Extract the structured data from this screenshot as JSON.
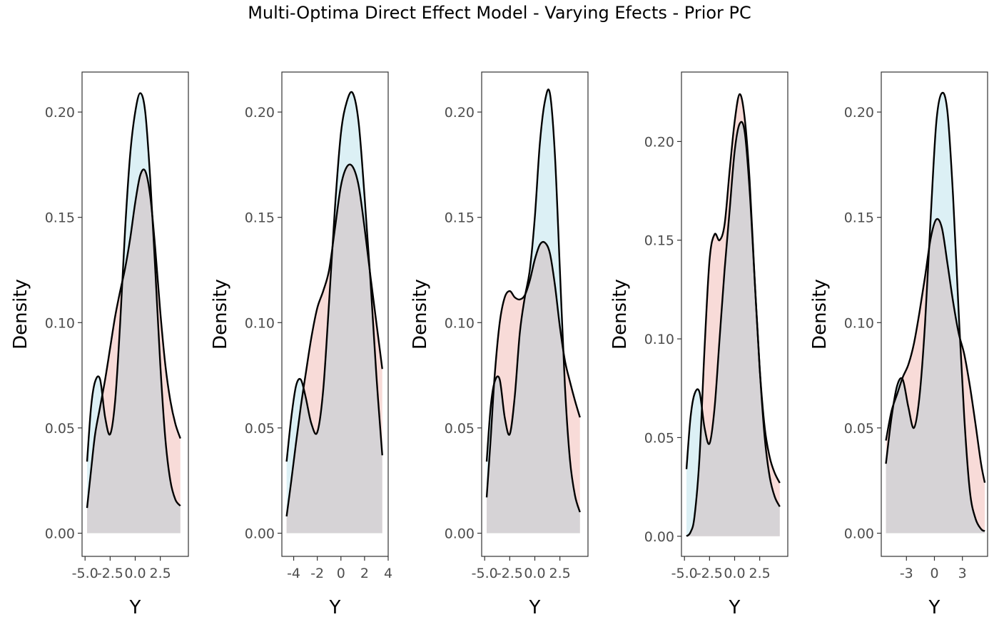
{
  "title": "Multi-Optima Direct Effect Model - Varying Efects - Prior PC",
  "colors": {
    "blue_fill": "#dcf0f5",
    "red_fill": "#f8dbd8",
    "overlap_fill": "#d6d3d6",
    "line": "#000000",
    "frame": "#333333"
  },
  "chart_data": [
    {
      "type": "area",
      "xlabel": "Y",
      "ylabel": "Density",
      "xlim": [
        -5.3,
        5.3
      ],
      "ylim": [
        -0.011,
        0.219
      ],
      "xticks": [
        -5.0,
        -2.5,
        0.0,
        2.5
      ],
      "xtick_labels": [
        "-5.0",
        "-2.5",
        "0.0",
        "2.5"
      ],
      "yticks": [
        0,
        0.05,
        0.1,
        0.15,
        0.2
      ],
      "ytick_labels": [
        "0.00",
        "0.05",
        "0.10",
        "0.15",
        "0.20"
      ],
      "series": [
        {
          "fill": "blue",
          "x": [
            -4.8,
            -4.4,
            -4.0,
            -3.5,
            -3.0,
            -2.5,
            -2.0,
            -1.5,
            -1.0,
            -0.5,
            0.0,
            0.5,
            1.0,
            1.5,
            2.0,
            2.5,
            3.0,
            3.5,
            4.0,
            4.5
          ],
          "y": [
            0.034,
            0.06,
            0.072,
            0.073,
            0.055,
            0.047,
            0.063,
            0.1,
            0.145,
            0.18,
            0.2,
            0.209,
            0.2,
            0.168,
            0.125,
            0.08,
            0.045,
            0.025,
            0.016,
            0.013
          ]
        },
        {
          "fill": "red",
          "x": [
            -4.8,
            -4.4,
            -4.0,
            -3.5,
            -3.0,
            -2.5,
            -2.0,
            -1.5,
            -1.0,
            -0.5,
            0.0,
            0.5,
            1.0,
            1.5,
            2.0,
            2.5,
            3.0,
            3.5,
            4.0,
            4.5
          ],
          "y": [
            0.012,
            0.03,
            0.047,
            0.06,
            0.073,
            0.088,
            0.103,
            0.115,
            0.126,
            0.14,
            0.157,
            0.17,
            0.172,
            0.16,
            0.135,
            0.105,
            0.08,
            0.063,
            0.052,
            0.045
          ]
        }
      ]
    },
    {
      "type": "area",
      "xlabel": "Y",
      "ylabel": "Density",
      "xlim": [
        -5.0,
        4.0
      ],
      "ylim": [
        -0.011,
        0.219
      ],
      "xticks": [
        -4,
        -2,
        0,
        2,
        4
      ],
      "xtick_labels": [
        "-4",
        "-2",
        "0",
        "2",
        "4"
      ],
      "yticks": [
        0,
        0.05,
        0.1,
        0.15,
        0.2
      ],
      "ytick_labels": [
        "0.00",
        "0.05",
        "0.10",
        "0.15",
        "0.20"
      ],
      "series": [
        {
          "fill": "blue",
          "x": [
            -4.6,
            -4.2,
            -3.8,
            -3.4,
            -3.0,
            -2.5,
            -2.0,
            -1.5,
            -1.0,
            -0.5,
            0.0,
            0.5,
            1.0,
            1.5,
            2.0,
            2.5,
            3.0,
            3.5
          ],
          "y": [
            0.034,
            0.055,
            0.07,
            0.073,
            0.065,
            0.052,
            0.048,
            0.068,
            0.11,
            0.155,
            0.19,
            0.205,
            0.209,
            0.195,
            0.16,
            0.12,
            0.075,
            0.037
          ]
        },
        {
          "fill": "red",
          "x": [
            -4.6,
            -4.2,
            -3.8,
            -3.4,
            -3.0,
            -2.5,
            -2.0,
            -1.5,
            -1.0,
            -0.5,
            0.0,
            0.5,
            1.0,
            1.5,
            2.0,
            2.5,
            3.0,
            3.5
          ],
          "y": [
            0.008,
            0.025,
            0.043,
            0.06,
            0.075,
            0.093,
            0.107,
            0.115,
            0.125,
            0.145,
            0.165,
            0.174,
            0.174,
            0.165,
            0.145,
            0.122,
            0.1,
            0.078
          ]
        }
      ]
    },
    {
      "type": "area",
      "xlabel": "Y",
      "ylabel": "Density",
      "xlim": [
        -5.3,
        5.3
      ],
      "ylim": [
        -0.011,
        0.219
      ],
      "xticks": [
        -5.0,
        -2.5,
        0.0,
        2.5
      ],
      "xtick_labels": [
        "-5.0",
        "-2.5",
        "0.0",
        "2.5"
      ],
      "yticks": [
        0,
        0.05,
        0.1,
        0.15,
        0.2
      ],
      "ytick_labels": [
        "0.00",
        "0.05",
        "0.10",
        "0.15",
        "0.20"
      ],
      "series": [
        {
          "fill": "blue",
          "x": [
            -4.8,
            -4.4,
            -4.0,
            -3.5,
            -3.0,
            -2.5,
            -2.0,
            -1.5,
            -1.0,
            -0.5,
            0.0,
            0.5,
            1.0,
            1.5,
            2.0,
            2.5,
            3.0,
            3.5,
            4.0,
            4.5
          ],
          "y": [
            0.034,
            0.06,
            0.072,
            0.073,
            0.055,
            0.047,
            0.065,
            0.095,
            0.112,
            0.125,
            0.15,
            0.185,
            0.205,
            0.209,
            0.18,
            0.125,
            0.07,
            0.035,
            0.018,
            0.01
          ]
        },
        {
          "fill": "red",
          "x": [
            -4.8,
            -4.4,
            -4.0,
            -3.5,
            -3.0,
            -2.5,
            -2.0,
            -1.5,
            -1.0,
            -0.5,
            0.0,
            0.5,
            1.0,
            1.5,
            2.0,
            2.5,
            3.0,
            3.5,
            4.0,
            4.5
          ],
          "y": [
            0.017,
            0.045,
            0.075,
            0.1,
            0.112,
            0.115,
            0.112,
            0.111,
            0.113,
            0.12,
            0.13,
            0.137,
            0.138,
            0.133,
            0.118,
            0.098,
            0.082,
            0.072,
            0.063,
            0.055
          ]
        }
      ]
    },
    {
      "type": "area",
      "xlabel": "Y",
      "ylabel": "Density",
      "xlim": [
        -5.3,
        5.3
      ],
      "ylim": [
        -0.0102,
        0.2352
      ],
      "xticks": [
        -5.0,
        -2.5,
        0.0,
        2.5
      ],
      "xtick_labels": [
        "-5.0",
        "-2.5",
        "0.0",
        "2.5"
      ],
      "yticks": [
        0,
        0.05,
        0.1,
        0.15,
        0.2
      ],
      "ytick_labels": [
        "0.00",
        "0.05",
        "0.10",
        "0.15",
        "0.20"
      ],
      "series": [
        {
          "fill": "blue",
          "x": [
            -4.8,
            -4.4,
            -4.0,
            -3.5,
            -3.0,
            -2.5,
            -2.0,
            -1.5,
            -1.0,
            -0.5,
            0.0,
            0.5,
            1.0,
            1.5,
            2.0,
            2.5,
            3.0,
            3.5,
            4.0,
            4.5
          ],
          "y": [
            0.034,
            0.06,
            0.072,
            0.073,
            0.055,
            0.047,
            0.065,
            0.1,
            0.135,
            0.165,
            0.195,
            0.209,
            0.205,
            0.175,
            0.13,
            0.085,
            0.05,
            0.03,
            0.02,
            0.015
          ]
        },
        {
          "fill": "red",
          "x": [
            -4.8,
            -4.4,
            -4.0,
            -3.5,
            -3.0,
            -2.5,
            -2.0,
            -1.5,
            -1.0,
            -0.5,
            0.0,
            0.5,
            1.0,
            1.5,
            2.0,
            2.5,
            3.0,
            3.5,
            4.0,
            4.5
          ],
          "y": [
            0.0,
            0.002,
            0.01,
            0.04,
            0.095,
            0.14,
            0.153,
            0.15,
            0.158,
            0.185,
            0.21,
            0.224,
            0.212,
            0.18,
            0.13,
            0.085,
            0.055,
            0.04,
            0.032,
            0.027
          ]
        }
      ]
    },
    {
      "type": "area",
      "xlabel": "Y",
      "ylabel": "Density",
      "xlim": [
        -5.7,
        5.7
      ],
      "ylim": [
        -0.011,
        0.219
      ],
      "xticks": [
        -3,
        0,
        3
      ],
      "xtick_labels": [
        "-3",
        "0",
        "3"
      ],
      "yticks": [
        0,
        0.05,
        0.1,
        0.15,
        0.2
      ],
      "ytick_labels": [
        "0.00",
        "0.05",
        "0.10",
        "0.15",
        "0.20"
      ],
      "series": [
        {
          "fill": "blue",
          "x": [
            -5.2,
            -4.6,
            -4.0,
            -3.4,
            -2.8,
            -2.2,
            -1.6,
            -1.0,
            -0.4,
            0.2,
            0.8,
            1.4,
            2.0,
            2.6,
            3.2,
            3.8,
            4.4,
            5.0,
            5.4
          ],
          "y": [
            0.033,
            0.055,
            0.07,
            0.073,
            0.06,
            0.05,
            0.065,
            0.1,
            0.15,
            0.195,
            0.209,
            0.2,
            0.16,
            0.105,
            0.055,
            0.02,
            0.007,
            0.002,
            0.001
          ]
        },
        {
          "fill": "red",
          "x": [
            -5.2,
            -4.6,
            -4.0,
            -3.4,
            -2.8,
            -2.2,
            -1.6,
            -1.0,
            -0.4,
            0.2,
            0.8,
            1.4,
            2.0,
            2.6,
            3.2,
            3.8,
            4.4,
            5.0,
            5.4
          ],
          "y": [
            0.044,
            0.058,
            0.066,
            0.074,
            0.08,
            0.09,
            0.105,
            0.122,
            0.14,
            0.149,
            0.145,
            0.128,
            0.11,
            0.095,
            0.085,
            0.07,
            0.052,
            0.033,
            0.024
          ]
        }
      ]
    }
  ]
}
